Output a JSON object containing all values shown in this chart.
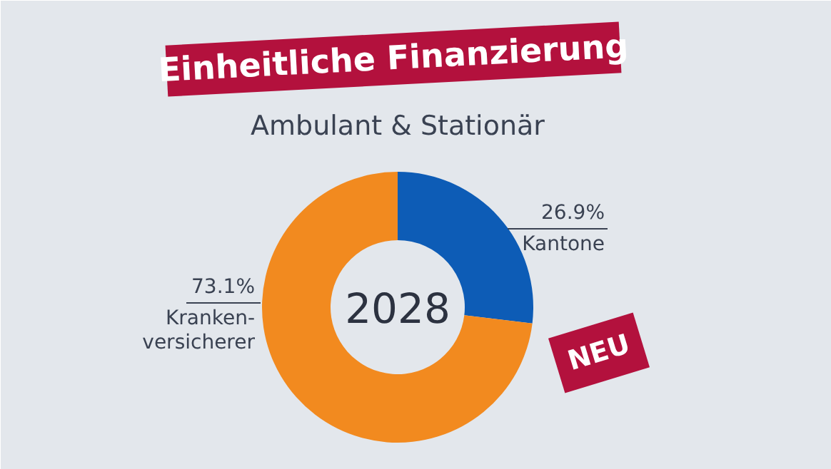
{
  "chart_data": {
    "type": "donut",
    "title": "Einheitliche Finanzierung",
    "subtitle": "Ambulant & Stationär",
    "categories": [
      "Kantone",
      "Kranken-\nversicherer"
    ],
    "values": [
      26.9,
      73.1
    ],
    "colors": [
      "#0d5cb6",
      "#f28a1f"
    ],
    "value_labels": [
      "26.9%",
      "73.1%"
    ],
    "annotations": [
      "2028",
      "NEU"
    ]
  }
}
